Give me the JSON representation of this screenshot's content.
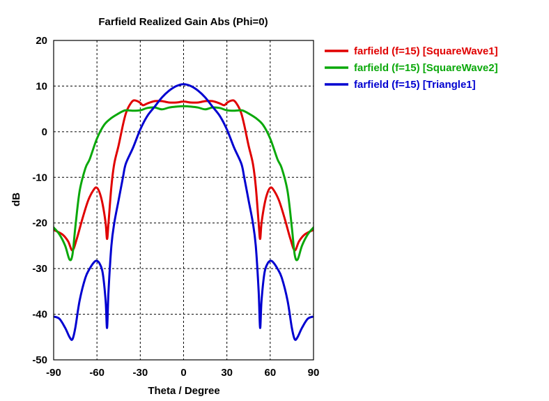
{
  "chart_data": {
    "type": "line",
    "title": "Farfield Realized Gain Abs (Phi=0)",
    "xlabel": "Theta / Degree",
    "ylabel": "dB",
    "xlim": [
      -90,
      90
    ],
    "ylim": [
      -50,
      20
    ],
    "xticks": [
      -90,
      -60,
      -30,
      0,
      30,
      60,
      90
    ],
    "yticks": [
      -50,
      -40,
      -30,
      -20,
      -10,
      0,
      10,
      20
    ],
    "grid": true,
    "legend_position": "outside-top-right",
    "series": [
      {
        "name": "farfield (f=15) [SquareWave1]",
        "color": "#e00000",
        "x": [
          -90,
          -84,
          -80,
          -77,
          -74,
          -70,
          -66,
          -62,
          -60,
          -58,
          -56,
          -54,
          -53,
          -52,
          -50,
          -48,
          -45,
          -42,
          -40,
          -38,
          -35,
          -32,
          -30,
          -28,
          -25,
          -20,
          -15,
          -10,
          -5,
          0,
          5,
          10,
          15,
          20,
          25,
          28,
          30,
          32,
          35,
          38,
          40,
          42,
          45,
          48,
          50,
          52,
          53,
          54,
          56,
          58,
          60,
          62,
          66,
          70,
          74,
          77,
          80,
          84,
          90
        ],
        "y": [
          -21.5,
          -22.5,
          -24,
          -26,
          -23.5,
          -19,
          -15,
          -12.6,
          -12.3,
          -13.5,
          -16,
          -20,
          -23.5,
          -20,
          -12,
          -7,
          -3,
          1.5,
          4,
          5.5,
          6.8,
          6.7,
          6.3,
          5.8,
          6.2,
          6.7,
          6.7,
          6.4,
          6.4,
          6.6,
          6.4,
          6.4,
          6.7,
          6.7,
          6.2,
          5.8,
          6.3,
          6.7,
          6.8,
          5.5,
          4,
          1.5,
          -3,
          -7,
          -12,
          -20,
          -23.5,
          -20,
          -16,
          -13.5,
          -12.3,
          -12.6,
          -15,
          -19,
          -23.5,
          -26,
          -24,
          -22.5,
          -21.5
        ]
      },
      {
        "name": "farfield (f=15) [SquareWave2]",
        "color": "#0aa80a",
        "x": [
          -90,
          -86,
          -82,
          -79,
          -77,
          -75,
          -72,
          -68,
          -65,
          -60,
          -55,
          -50,
          -45,
          -42,
          -40,
          -35,
          -30,
          -25,
          -20,
          -15,
          -10,
          -5,
          0,
          5,
          10,
          15,
          20,
          25,
          30,
          35,
          40,
          42,
          45,
          50,
          55,
          60,
          65,
          68,
          72,
          75,
          77,
          79,
          82,
          86,
          90
        ],
        "y": [
          -21,
          -22.5,
          -25,
          -28,
          -27,
          -21,
          -13,
          -8,
          -6,
          -1.5,
          1.5,
          3,
          4,
          4.5,
          4.7,
          4.6,
          4.7,
          5.2,
          5.3,
          4.9,
          5.3,
          5.5,
          5.6,
          5.5,
          5.3,
          4.9,
          5.3,
          5.2,
          4.7,
          4.6,
          4.7,
          4.5,
          4,
          3,
          1.5,
          -1.5,
          -6,
          -8,
          -13,
          -21,
          -27,
          -28,
          -25,
          -22.5,
          -21
        ]
      },
      {
        "name": "farfield (f=15) [Triangle1]",
        "color": "#0000d0",
        "x": [
          -90,
          -86,
          -82,
          -79,
          -77,
          -75,
          -72,
          -68,
          -65,
          -62,
          -60,
          -58,
          -56,
          -54,
          -53,
          -52,
          -50,
          -48,
          -45,
          -42,
          -40,
          -35,
          -30,
          -25,
          -20,
          -15,
          -10,
          -5,
          0,
          5,
          10,
          15,
          20,
          25,
          30,
          35,
          40,
          42,
          45,
          48,
          50,
          52,
          53,
          54,
          56,
          58,
          60,
          62,
          65,
          68,
          72,
          75,
          77,
          79,
          82,
          86,
          90
        ],
        "y": [
          -40.5,
          -41,
          -43,
          -45,
          -45.5,
          -43,
          -37,
          -32,
          -30,
          -28.6,
          -28.3,
          -29,
          -31,
          -37,
          -43,
          -35,
          -25,
          -20,
          -15,
          -10,
          -7,
          -3.5,
          0.5,
          3.5,
          5.5,
          7.5,
          9,
          10,
          10.4,
          10,
          9,
          7.5,
          5.5,
          3.5,
          0.5,
          -3.5,
          -7,
          -10,
          -15,
          -20,
          -25,
          -35,
          -43,
          -37,
          -31,
          -29,
          -28.3,
          -28.6,
          -30,
          -32,
          -37,
          -43,
          -45.5,
          -45,
          -43,
          -41,
          -40.5
        ]
      }
    ]
  }
}
